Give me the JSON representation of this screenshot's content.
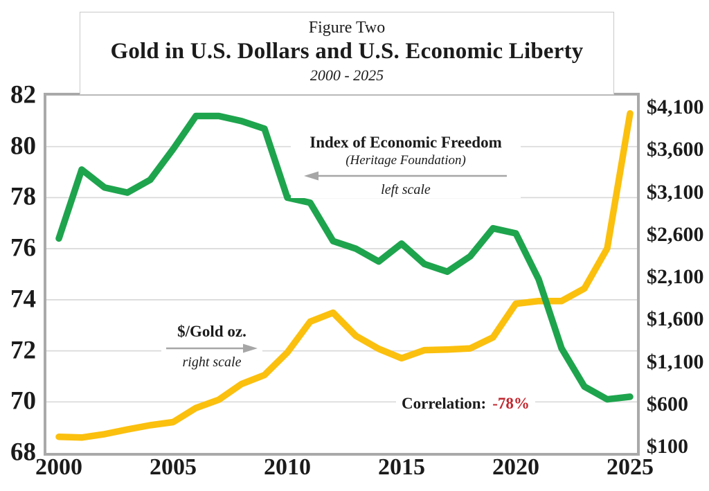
{
  "figure": {
    "pretitle": "Figure Two",
    "title": "Gold in U.S. Dollars and U.S. Economic Liberty",
    "subtitle": "2000 - 2025"
  },
  "annotations": {
    "ief_label": "Index of Economic Freedom",
    "ief_source": "(Heritage Foundation)",
    "ief_scale_note": "left scale",
    "gold_label": "$/Gold oz.",
    "gold_scale_note": "right scale",
    "correlation_label": "Correlation:",
    "correlation_value": "-78%"
  },
  "colors": {
    "ief_green": "#1ea44d",
    "gold_yellow": "#fbc00e",
    "correlation_red": "#c2262e",
    "grid_gray": "#d9d9d9",
    "border_gray": "#a9a9a9",
    "arrow_gray": "#a6a6a6",
    "text": "#1b1b1b"
  },
  "chart_data": {
    "type": "line",
    "title": "Gold in U.S. Dollars and U.S. Economic Liberty",
    "subtitle": "2000 - 2025",
    "grid": true,
    "legend_position": "none",
    "correlation": "-78%",
    "x": [
      2000,
      2001,
      2002,
      2003,
      2004,
      2005,
      2006,
      2007,
      2008,
      2009,
      2010,
      2011,
      2012,
      2013,
      2014,
      2015,
      2016,
      2017,
      2018,
      2019,
      2020,
      2021,
      2022,
      2023,
      2024,
      2025
    ],
    "x_ticks": [
      2000,
      2005,
      2010,
      2015,
      2020,
      2025
    ],
    "left_axis": {
      "label": "Index of Economic Freedom",
      "range": [
        68,
        82
      ],
      "ticks": [
        82,
        80,
        78,
        76,
        74,
        72,
        70,
        68
      ]
    },
    "right_axis": {
      "label": "$/Gold oz.",
      "range": [
        100,
        4100
      ],
      "ticks": [
        "$4,100",
        "$3,600",
        "$3,100",
        "$2,600",
        "$2,100",
        "$1,600",
        "$1,100",
        "$600",
        "$100"
      ]
    },
    "series": [
      {
        "name": "Index of Economic Freedom (Heritage Foundation)",
        "axis": "left",
        "color": "#1ea44d",
        "values": [
          76.4,
          79.1,
          78.4,
          78.2,
          78.7,
          79.9,
          81.2,
          81.2,
          81.0,
          80.7,
          78.0,
          77.8,
          76.3,
          76.0,
          75.5,
          76.2,
          75.4,
          75.1,
          75.7,
          76.8,
          76.6,
          74.8,
          72.1,
          70.6,
          70.1,
          70.2
        ]
      },
      {
        "name": "$/Gold oz.",
        "axis": "right",
        "color": "#fbc00e",
        "values": [
          280,
          272,
          310,
          363,
          410,
          445,
          603,
          695,
          872,
          972,
          1225,
          1570,
          1670,
          1410,
          1265,
          1160,
          1250,
          1257,
          1270,
          1393,
          1770,
          1800,
          1800,
          1940,
          2390,
          3900
        ]
      }
    ]
  }
}
